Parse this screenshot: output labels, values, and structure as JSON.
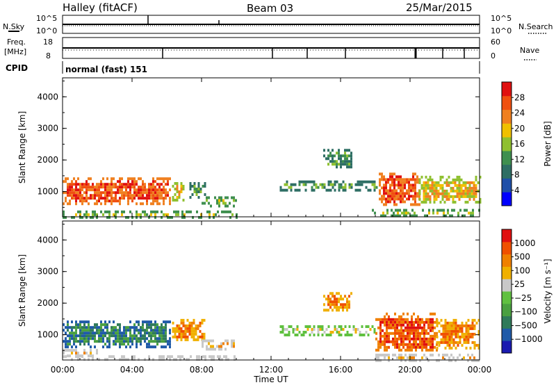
{
  "header": {
    "station": "Halley (fitACF)",
    "beam": "Beam 03",
    "date": "25/Mar/2015"
  },
  "strip_labels": {
    "nsky": "N.Sky",
    "nsearch": "N.Search",
    "freq_top": "Freq.",
    "freq_unit": "[MHz]",
    "nave": "Nave",
    "cpid": "CPID",
    "cpid_value": "normal (fast) 151",
    "nsky_ticks": [
      "10^5",
      "10^0"
    ],
    "nsearch_ticks": [
      "10^5",
      "10^0"
    ],
    "freq_ticks": [
      "18",
      "8"
    ],
    "nave_ticks": [
      "60",
      "0"
    ]
  },
  "colors": {
    "power": [
      "#0000ff",
      "#1f4fa8",
      "#2e6e64",
      "#3f8f4f",
      "#8fc030",
      "#f0c000",
      "#f08020",
      "#f05010",
      "#e01010"
    ],
    "velocity": [
      "#1a1ab0",
      "#1f5aa8",
      "#2f7a5a",
      "#4aa040",
      "#60c040",
      "#c8c8c8",
      "#f0b000",
      "#f08000",
      "#f05000",
      "#e01010"
    ]
  },
  "chart_data": [
    {
      "type": "heatmap",
      "name": "power",
      "ylabel": "Slant Range [km]",
      "xlabel": "",
      "ylim": [
        200,
        4600
      ],
      "xlim": [
        0,
        24
      ],
      "yticks": [
        "4000",
        "3000",
        "2000",
        "1000"
      ],
      "ytick_values": [
        4000,
        3000,
        2000,
        1000
      ],
      "colorbar": {
        "label": "Power [dB]",
        "ticks": [
          "28",
          "24",
          "20",
          "16",
          "12",
          "8",
          "4"
        ],
        "tick_values": [
          28,
          24,
          20,
          16,
          12,
          8,
          4
        ],
        "range": [
          0,
          32
        ]
      },
      "regions": [
        {
          "t0": 0.0,
          "t1": 6.2,
          "r0": 650,
          "r1": 1450,
          "level": 7
        },
        {
          "t0": 6.3,
          "t1": 7.0,
          "r0": 700,
          "r1": 1300,
          "level": 5
        },
        {
          "t0": 7.3,
          "t1": 8.2,
          "r0": 850,
          "r1": 1300,
          "level": 3
        },
        {
          "t0": 8.0,
          "t1": 10.0,
          "r0": 550,
          "r1": 850,
          "level": 4
        },
        {
          "t0": 12.5,
          "t1": 18.2,
          "r0": 1050,
          "r1": 1350,
          "level": 3
        },
        {
          "t0": 15.0,
          "t1": 16.6,
          "r0": 1750,
          "r1": 2350,
          "level": 3
        },
        {
          "t0": 18.2,
          "t1": 20.5,
          "r0": 600,
          "r1": 1600,
          "level": 7
        },
        {
          "t0": 20.5,
          "t1": 24.0,
          "r0": 700,
          "r1": 1500,
          "level": 5
        },
        {
          "t0": 0.0,
          "t1": 10.0,
          "r0": 200,
          "r1": 400,
          "level": 4
        },
        {
          "t0": 17.8,
          "t1": 24.0,
          "r0": 200,
          "r1": 450,
          "level": 4
        }
      ]
    },
    {
      "type": "heatmap",
      "name": "velocity",
      "ylabel": "Slant Range [km]",
      "xlabel": "Time UT",
      "ylim": [
        200,
        4600
      ],
      "xlim": [
        0,
        24
      ],
      "yticks": [
        "4000",
        "3000",
        "2000",
        "1000"
      ],
      "ytick_values": [
        4000,
        3000,
        2000,
        1000
      ],
      "xticks": [
        "00:00",
        "04:00",
        "08:00",
        "12:00",
        "16:00",
        "20:00",
        "00:00"
      ],
      "xtick_values": [
        0,
        4,
        8,
        12,
        16,
        20,
        24
      ],
      "colorbar": {
        "label": "Velocity [m s⁻¹]",
        "ticks": [
          "1000",
          "500",
          "100",
          "25",
          "−25",
          "−100",
          "−500",
          "−1000"
        ],
        "tick_values": [
          1000,
          500,
          100,
          25,
          -25,
          -100,
          -500,
          -1000
        ]
      },
      "regions": [
        {
          "t0": 0.0,
          "t1": 6.2,
          "r0": 650,
          "r1": 1450,
          "level": 2
        },
        {
          "t0": 6.3,
          "t1": 8.2,
          "r0": 800,
          "r1": 1500,
          "level": 7
        },
        {
          "t0": 8.0,
          "t1": 10.0,
          "r0": 550,
          "r1": 850,
          "level": 6
        },
        {
          "t0": 0.0,
          "t1": 2.0,
          "r0": 300,
          "r1": 550,
          "level": 6
        },
        {
          "t0": 12.5,
          "t1": 18.0,
          "r0": 1000,
          "r1": 1300,
          "level": 5
        },
        {
          "t0": 15.0,
          "t1": 16.6,
          "r0": 1750,
          "r1": 2350,
          "level": 7
        },
        {
          "t0": 18.0,
          "t1": 21.5,
          "r0": 500,
          "r1": 1700,
          "level": 8
        },
        {
          "t0": 21.5,
          "t1": 24.0,
          "r0": 600,
          "r1": 1500,
          "level": 7
        },
        {
          "t0": 0.0,
          "t1": 10.0,
          "r0": 200,
          "r1": 350,
          "level": 6
        },
        {
          "t0": 18.0,
          "t1": 24.0,
          "r0": 200,
          "r1": 400,
          "level": 6
        }
      ]
    }
  ]
}
